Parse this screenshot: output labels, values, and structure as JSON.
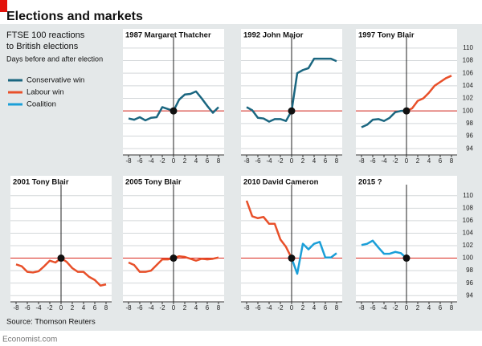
{
  "title": "Elections and markets",
  "subtitle": [
    "FTSE 100 reactions",
    "to British elections"
  ],
  "note": "Days before and after election",
  "legend": [
    {
      "name": "Conservative win",
      "color": "#1a6680"
    },
    {
      "name": "Labour win",
      "color": "#e8502a"
    },
    {
      "name": "Coalition",
      "color": "#1b9fd8"
    }
  ],
  "source": "Source: Thomson Reuters",
  "footer": "Economist.com",
  "chart_data": [
    {
      "type": "line",
      "title": "1987 Margaret Thatcher",
      "xlim": [
        -9,
        9
      ],
      "ylim": [
        93,
        111
      ],
      "xticks": [
        -8,
        -6,
        -4,
        -2,
        0,
        2,
        4,
        6,
        8
      ],
      "yticks": [
        94,
        96,
        98,
        100,
        102,
        104,
        106,
        108,
        110
      ],
      "ytick_labels": false,
      "hline": 100,
      "vline": 0,
      "x": [
        -8,
        -7,
        -6,
        -5,
        -4,
        -3,
        -2,
        -1,
        0,
        1,
        2,
        3,
        4,
        5,
        6,
        7,
        8
      ],
      "series": [
        {
          "color": "#1a6680",
          "values": [
            98.8,
            98.6,
            99.0,
            98.5,
            98.9,
            99.0,
            100.6,
            100.3,
            100,
            101.8,
            102.6,
            102.7,
            103.1,
            102.0,
            100.8,
            99.7,
            100.6
          ]
        }
      ]
    },
    {
      "type": "line",
      "title": "1992 John Major",
      "xlim": [
        -9,
        9
      ],
      "ylim": [
        93,
        111
      ],
      "xticks": [
        -8,
        -6,
        -4,
        -2,
        0,
        2,
        4,
        6,
        8
      ],
      "yticks": [
        94,
        96,
        98,
        100,
        102,
        104,
        106,
        108,
        110
      ],
      "ytick_labels": false,
      "hline": 100,
      "vline": 0,
      "x": [
        -8,
        -7,
        -6,
        -5,
        -4,
        -3,
        -2,
        -1,
        0,
        1,
        2,
        3,
        4,
        5,
        6,
        7,
        8
      ],
      "series": [
        {
          "color": "#1a6680",
          "values": [
            100.6,
            100.1,
            98.9,
            98.8,
            98.3,
            98.7,
            98.7,
            98.4,
            100,
            106.0,
            106.5,
            106.8,
            108.3,
            108.3,
            108.3,
            108.3,
            107.9
          ]
        }
      ]
    },
    {
      "type": "line",
      "title": "1997 Tony Blair",
      "xlim": [
        -9,
        9
      ],
      "ylim": [
        93,
        111
      ],
      "xticks": [
        -8,
        -6,
        -4,
        -2,
        0,
        2,
        4,
        6,
        8
      ],
      "yticks": [
        94,
        96,
        98,
        100,
        102,
        104,
        106,
        108,
        110
      ],
      "ytick_labels": true,
      "hline": 100,
      "vline": 0,
      "x": [
        -8,
        -7,
        -6,
        -5,
        -4,
        -3,
        -2,
        -1,
        0,
        1,
        2,
        3,
        4,
        5,
        6,
        7,
        8
      ],
      "series": [
        {
          "color": "#1a6680",
          "values": [
            97.4,
            97.8,
            98.6,
            98.7,
            98.4,
            98.9,
            99.8,
            100.0,
            100,
            null,
            null,
            null,
            null,
            null,
            null,
            null,
            null
          ]
        },
        {
          "color": "#e8502a",
          "values": [
            null,
            null,
            null,
            null,
            null,
            null,
            null,
            null,
            100,
            100.4,
            101.6,
            102.0,
            102.9,
            104.0,
            104.6,
            105.2,
            105.6
          ]
        }
      ]
    },
    {
      "type": "line",
      "title": "2001 Tony Blair",
      "xlim": [
        -9,
        9
      ],
      "ylim": [
        93,
        111
      ],
      "xticks": [
        -8,
        -6,
        -4,
        -2,
        0,
        2,
        4,
        6,
        8
      ],
      "yticks": [
        94,
        96,
        98,
        100,
        102,
        104,
        106,
        108,
        110
      ],
      "ytick_labels": false,
      "hline": 100,
      "vline": 0,
      "x": [
        -8,
        -7,
        -6,
        -5,
        -4,
        -3,
        -2,
        -1,
        0,
        1,
        2,
        3,
        4,
        5,
        6,
        7,
        8
      ],
      "series": [
        {
          "color": "#e8502a",
          "values": [
            99.0,
            98.7,
            97.8,
            97.7,
            97.9,
            98.7,
            99.6,
            99.3,
            100,
            99.4,
            98.4,
            97.8,
            97.8,
            97.0,
            96.5,
            95.6,
            95.8
          ]
        }
      ]
    },
    {
      "type": "line",
      "title": "2005 Tony Blair",
      "xlim": [
        -9,
        9
      ],
      "ylim": [
        93,
        111
      ],
      "xticks": [
        -8,
        -6,
        -4,
        -2,
        0,
        2,
        4,
        6,
        8
      ],
      "yticks": [
        94,
        96,
        98,
        100,
        102,
        104,
        106,
        108,
        110
      ],
      "ytick_labels": false,
      "hline": 100,
      "vline": 0,
      "x": [
        -8,
        -7,
        -6,
        -5,
        -4,
        -3,
        -2,
        -1,
        0,
        1,
        2,
        3,
        4,
        5,
        6,
        7,
        8
      ],
      "series": [
        {
          "color": "#e8502a",
          "values": [
            99.3,
            98.9,
            97.8,
            97.8,
            98.0,
            98.9,
            99.8,
            99.8,
            100,
            100.3,
            100.2,
            99.9,
            99.6,
            99.9,
            99.8,
            99.9,
            100.1
          ]
        }
      ]
    },
    {
      "type": "line",
      "title": "2010 David Cameron",
      "xlim": [
        -9,
        9
      ],
      "ylim": [
        93,
        111
      ],
      "xticks": [
        -8,
        -6,
        -4,
        -2,
        0,
        2,
        4,
        6,
        8
      ],
      "yticks": [
        94,
        96,
        98,
        100,
        102,
        104,
        106,
        108,
        110
      ],
      "ytick_labels": false,
      "hline": 100,
      "vline": 0,
      "x": [
        -8,
        -7,
        -6,
        -5,
        -4,
        -3,
        -2,
        -1,
        0,
        1,
        2,
        3,
        4,
        5,
        6,
        7,
        8
      ],
      "series": [
        {
          "color": "#e8502a",
          "values": [
            109.2,
            106.7,
            106.4,
            106.6,
            105.5,
            105.5,
            103.0,
            101.8,
            100,
            null,
            null,
            null,
            null,
            null,
            null,
            null,
            null
          ]
        },
        {
          "color": "#1b9fd8",
          "values": [
            null,
            null,
            null,
            null,
            null,
            null,
            null,
            null,
            100,
            97.5,
            102.3,
            101.4,
            102.3,
            102.6,
            100.1,
            100.1,
            100.8
          ]
        }
      ]
    },
    {
      "type": "line",
      "title": "2015 ?",
      "xlim": [
        -9,
        9
      ],
      "ylim": [
        93,
        111
      ],
      "xticks": [
        -8,
        -6,
        -4,
        -2,
        0,
        2,
        4,
        6,
        8
      ],
      "yticks": [
        94,
        96,
        98,
        100,
        102,
        104,
        106,
        108,
        110
      ],
      "ytick_labels": true,
      "hline": 100,
      "vline": 0,
      "x": [
        -8,
        -7,
        -6,
        -5,
        -4,
        -3,
        -2,
        -1,
        0,
        1,
        2,
        3,
        4,
        5,
        6,
        7,
        8
      ],
      "series": [
        {
          "color": "#1b9fd8",
          "values": [
            102.1,
            102.3,
            102.8,
            101.7,
            100.7,
            100.7,
            101.0,
            100.8,
            100,
            null,
            null,
            null,
            null,
            null,
            null,
            null,
            null
          ]
        }
      ]
    }
  ]
}
